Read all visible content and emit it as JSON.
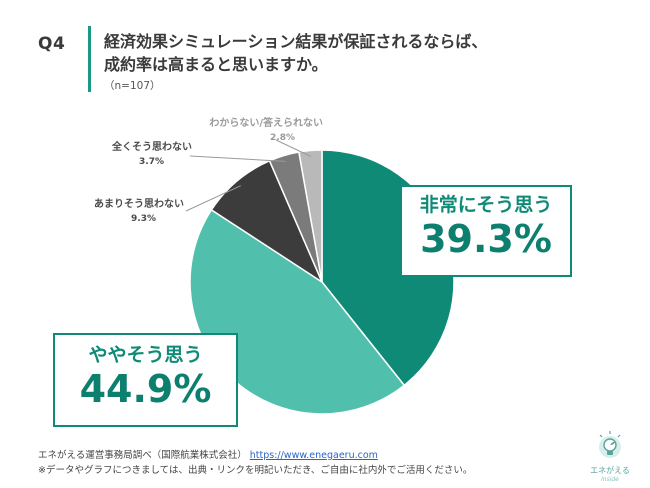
{
  "question": {
    "label": "Q4",
    "title_line1": "経済効果シミュレーション結果が保証されるならば、",
    "title_line2": "成約率は高まると思いますか。",
    "sample": "（n=107）"
  },
  "chart_data": {
    "type": "pie",
    "title": "",
    "start": "top",
    "direction": "clockwise",
    "slices": [
      {
        "label": "非常にそう思う",
        "value": 39.3,
        "value_label": "39.3%",
        "color": "#0f8a77"
      },
      {
        "label": "ややそう思う",
        "value": 44.9,
        "value_label": "44.9%",
        "color": "#50c0ad"
      },
      {
        "label": "あまりそう思わない",
        "value": 9.3,
        "value_label": "9.3%",
        "color": "#3c3c3c"
      },
      {
        "label": "全くそう思わない",
        "value": 3.7,
        "value_label": "3.7%",
        "color": "#7b7b7b"
      },
      {
        "label": "わからない/答えられない",
        "value": 2.8,
        "value_label": "2.8%",
        "color": "#b9b9b9"
      }
    ]
  },
  "footer": {
    "source": "エネがえる運営事務局調べ（国際航業株式会社）",
    "url": "https://www.enegaeru.com",
    "note": "※データやグラフにつきましては、出典・リンクを明記いただき、ご自由に社内外でご活用ください。"
  },
  "logo": {
    "brand": "エネがえる",
    "sub": "inside",
    "icon": "lightbulb-leaf-icon"
  }
}
